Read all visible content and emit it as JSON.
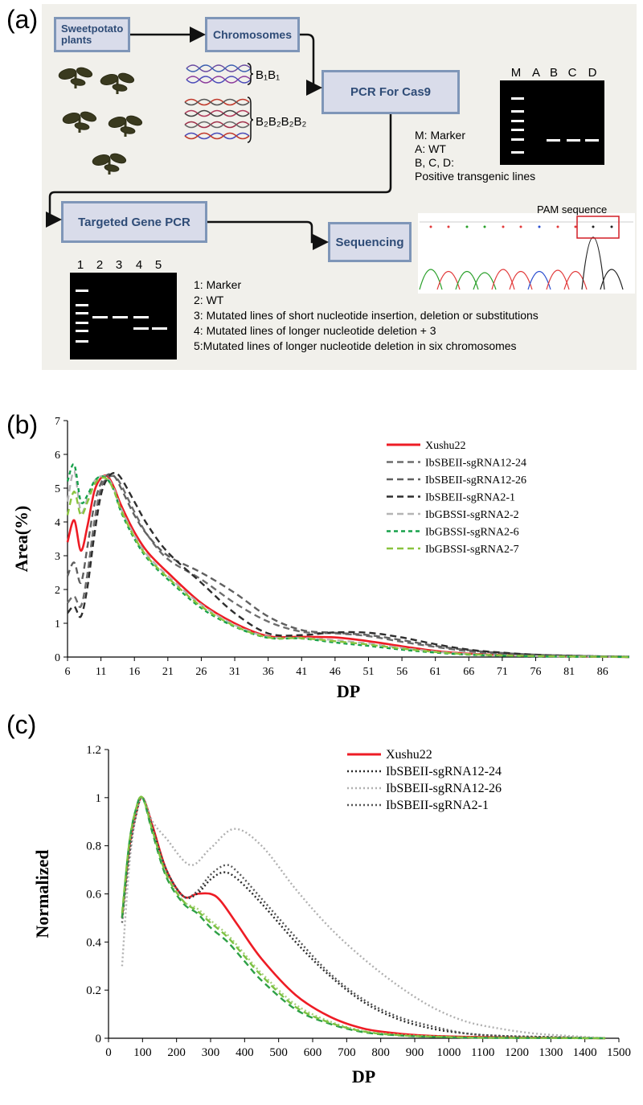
{
  "panel_a": {
    "label": "(a)",
    "boxes": {
      "plants": "Sweetpotato plants",
      "chromosomes": "Chromosomes",
      "pcr_cas9": "PCR For Cas9",
      "targeted_pcr": "Targeted Gene PCR",
      "sequencing": "Sequencing"
    },
    "b1_label": "B₁B₁",
    "b2_label": "B₂B₂B₂B₂",
    "gel1": {
      "lanes": [
        "M",
        "A",
        "B",
        "C",
        "D"
      ],
      "legend": [
        "M: Marker",
        "A: WT",
        "B, C, D:",
        "Positive transgenic lines"
      ]
    },
    "pam_label": "PAM sequence",
    "gel2": {
      "lanes": [
        "1",
        "2",
        "3",
        "4",
        "5"
      ],
      "legend": [
        "1: Marker",
        "2: WT",
        "3: Mutated lines of  short nucleotide insertion, deletion or substitutions",
        "4: Mutated lines of longer nucleotide  deletion + 3",
        "5:Mutated lines of longer nucleotide  deletion in six  chromosomes"
      ]
    },
    "colors": {
      "box_fill": "#d9dcea",
      "box_border": "#7f96b8",
      "box_text": "#2f4c77",
      "panel_bg": "#f1f0eb"
    }
  },
  "chart_data": [
    {
      "panel": "(b)",
      "type": "line",
      "title": "",
      "xlabel": "DP",
      "ylabel": "Area(%)",
      "xlim": [
        6,
        90
      ],
      "ylim": [
        0,
        7
      ],
      "xticks": [
        6,
        11,
        16,
        21,
        26,
        31,
        36,
        41,
        46,
        51,
        56,
        61,
        66,
        71,
        76,
        81,
        86
      ],
      "yticks": [
        0,
        1,
        2,
        3,
        4,
        5,
        6,
        7
      ],
      "legend_position": "top-right",
      "series": [
        {
          "name": "Xushu22",
          "color": "#ee1c25",
          "dash": "solid",
          "x": [
            6,
            7,
            8,
            9,
            10,
            11,
            12,
            13,
            14,
            16,
            18,
            21,
            26,
            31,
            36,
            41,
            46,
            51,
            56,
            61,
            66,
            71,
            76,
            81,
            86,
            90
          ],
          "y": [
            3.4,
            4.05,
            3.15,
            3.9,
            4.9,
            5.3,
            5.35,
            5.0,
            4.5,
            3.7,
            3.1,
            2.5,
            1.6,
            1.0,
            0.62,
            0.6,
            0.58,
            0.47,
            0.32,
            0.18,
            0.1,
            0.06,
            0.04,
            0.02,
            0.01,
            0.0
          ]
        },
        {
          "name": "IbSBEII-sgRNA12-24",
          "color": "#6d6d6d",
          "dash": "dash",
          "x": [
            6,
            7,
            8,
            9,
            10,
            11,
            12,
            13,
            14,
            16,
            18,
            21,
            26,
            31,
            36,
            41,
            46,
            51,
            56,
            61,
            66,
            71,
            76,
            81,
            86,
            90
          ],
          "y": [
            1.6,
            1.8,
            1.5,
            2.5,
            4.0,
            5.0,
            5.3,
            5.35,
            5.1,
            4.3,
            3.6,
            2.9,
            2.3,
            1.6,
            1.05,
            0.75,
            0.7,
            0.62,
            0.45,
            0.3,
            0.17,
            0.1,
            0.06,
            0.04,
            0.02,
            0.01
          ]
        },
        {
          "name": "IbSBEII-sgRNA12-26",
          "color": "#606060",
          "dash": "dash",
          "x": [
            6,
            7,
            8,
            9,
            10,
            11,
            12,
            13,
            14,
            16,
            18,
            21,
            26,
            31,
            36,
            41,
            46,
            51,
            56,
            61,
            66,
            71,
            76,
            81,
            86,
            90
          ],
          "y": [
            2.4,
            2.8,
            2.2,
            3.3,
            4.5,
            5.15,
            5.4,
            5.35,
            5.0,
            4.2,
            3.6,
            3.0,
            2.5,
            1.9,
            1.2,
            0.8,
            0.72,
            0.65,
            0.5,
            0.33,
            0.2,
            0.12,
            0.07,
            0.04,
            0.02,
            0.01
          ]
        },
        {
          "name": "IbSBEII-sgRNA2-1",
          "color": "#2e2e2e",
          "dash": "dash",
          "x": [
            6,
            7,
            8,
            9,
            10,
            11,
            12,
            13,
            14,
            16,
            18,
            21,
            26,
            31,
            36,
            41,
            46,
            51,
            56,
            61,
            66,
            71,
            76,
            81,
            86,
            90
          ],
          "y": [
            1.3,
            1.5,
            1.2,
            2.1,
            3.6,
            4.8,
            5.3,
            5.45,
            5.3,
            4.6,
            3.9,
            3.1,
            2.2,
            1.3,
            0.7,
            0.65,
            0.73,
            0.72,
            0.58,
            0.38,
            0.22,
            0.13,
            0.07,
            0.04,
            0.02,
            0.01
          ]
        },
        {
          "name": "IbGBSSI-sgRNA2-2",
          "color": "#b5b5b5",
          "dash": "dash",
          "x": [
            6,
            7,
            8,
            9,
            10,
            11,
            12,
            13,
            14,
            16,
            18,
            21,
            26,
            31,
            36,
            41,
            46,
            51,
            56,
            61,
            66,
            71,
            76,
            81,
            86,
            90
          ],
          "y": [
            4.6,
            5.5,
            4.3,
            4.7,
            5.2,
            5.35,
            5.3,
            4.95,
            4.4,
            3.6,
            3.0,
            2.4,
            1.55,
            0.95,
            0.6,
            0.57,
            0.5,
            0.4,
            0.27,
            0.16,
            0.09,
            0.05,
            0.03,
            0.02,
            0.01,
            0.0
          ]
        },
        {
          "name": "IbGBSSI-sgRNA2-6",
          "color": "#17a14a",
          "dash": "short",
          "x": [
            6,
            7,
            8,
            9,
            10,
            11,
            12,
            13,
            14,
            16,
            18,
            21,
            26,
            31,
            36,
            41,
            46,
            51,
            56,
            61,
            66,
            71,
            76,
            81,
            86,
            90
          ],
          "y": [
            5.2,
            5.7,
            4.6,
            4.8,
            5.2,
            5.35,
            5.25,
            4.9,
            4.3,
            3.5,
            2.9,
            2.3,
            1.45,
            0.9,
            0.57,
            0.55,
            0.43,
            0.33,
            0.22,
            0.13,
            0.07,
            0.04,
            0.02,
            0.01,
            0.01,
            0.0
          ]
        },
        {
          "name": "IbGBSSI-sgRNA2-7",
          "color": "#8ac43f",
          "dash": "dash",
          "x": [
            6,
            7,
            8,
            9,
            10,
            11,
            12,
            13,
            14,
            16,
            18,
            21,
            26,
            31,
            36,
            41,
            46,
            51,
            56,
            61,
            66,
            71,
            76,
            81,
            86,
            90
          ],
          "y": [
            4.2,
            4.9,
            4.2,
            4.6,
            5.1,
            5.3,
            5.25,
            4.9,
            4.35,
            3.55,
            2.95,
            2.35,
            1.5,
            0.92,
            0.58,
            0.56,
            0.47,
            0.37,
            0.25,
            0.15,
            0.08,
            0.05,
            0.03,
            0.02,
            0.01,
            0.0
          ]
        }
      ]
    },
    {
      "panel": "(c)",
      "type": "line",
      "title": "",
      "xlabel": "DP",
      "ylabel": "Normalized",
      "xlim": [
        0,
        1500
      ],
      "ylim": [
        0,
        1.2
      ],
      "xticks": [
        0,
        100,
        200,
        300,
        400,
        500,
        600,
        700,
        800,
        900,
        1000,
        1100,
        1200,
        1300,
        1400,
        1500
      ],
      "yticks": [
        0,
        0.2,
        0.4,
        0.6,
        0.8,
        1,
        1.2
      ],
      "ytick_labels": [
        "0",
        "0.2",
        "0.4",
        "0.6",
        "0.8",
        "1",
        "1.2"
      ],
      "legend_position": "top-right",
      "series": [
        {
          "name": "Xushu22",
          "color": "#ee1c25",
          "dash": "solid",
          "in_legend": true,
          "x": [
            40,
            60,
            80,
            100,
            130,
            170,
            220,
            260,
            300,
            330,
            380,
            450,
            550,
            650,
            750,
            850,
            950,
            1100,
            1300,
            1460
          ],
          "y": [
            0.5,
            0.78,
            0.93,
            1.0,
            0.88,
            0.7,
            0.59,
            0.6,
            0.6,
            0.57,
            0.47,
            0.33,
            0.18,
            0.09,
            0.04,
            0.02,
            0.01,
            0.005,
            0.002,
            0.0
          ]
        },
        {
          "name": "IbSBEII-sgRNA12-24",
          "color": "#2b2b2b",
          "dash": "dot",
          "in_legend": true,
          "x": [
            40,
            60,
            80,
            100,
            130,
            170,
            220,
            260,
            300,
            340,
            380,
            450,
            550,
            650,
            750,
            850,
            950,
            1050,
            1150,
            1300,
            1460
          ],
          "y": [
            0.5,
            0.75,
            0.92,
            1.0,
            0.87,
            0.7,
            0.59,
            0.6,
            0.66,
            0.69,
            0.66,
            0.56,
            0.4,
            0.26,
            0.15,
            0.08,
            0.04,
            0.02,
            0.01,
            0.005,
            0.0
          ]
        },
        {
          "name": "IbSBEII-sgRNA12-26",
          "color": "#b0b0b0",
          "dash": "dot",
          "in_legend": true,
          "x": [
            40,
            60,
            80,
            100,
            130,
            170,
            240,
            300,
            370,
            450,
            550,
            650,
            750,
            850,
            950,
            1050,
            1150,
            1250,
            1350,
            1460
          ],
          "y": [
            0.3,
            0.7,
            0.92,
            1.0,
            0.9,
            0.83,
            0.72,
            0.79,
            0.87,
            0.8,
            0.62,
            0.46,
            0.33,
            0.22,
            0.13,
            0.07,
            0.04,
            0.02,
            0.01,
            0.0
          ]
        },
        {
          "name": "IbSBEII-sgRNA2-1",
          "color": "#555555",
          "dash": "dot",
          "in_legend": true,
          "x": [
            40,
            60,
            80,
            100,
            130,
            170,
            220,
            260,
            300,
            345,
            380,
            450,
            550,
            650,
            750,
            850,
            950,
            1050,
            1150,
            1300,
            1460
          ],
          "y": [
            0.48,
            0.75,
            0.92,
            1.0,
            0.87,
            0.7,
            0.59,
            0.61,
            0.68,
            0.72,
            0.69,
            0.58,
            0.42,
            0.27,
            0.16,
            0.09,
            0.05,
            0.02,
            0.01,
            0.005,
            0.0
          ]
        },
        {
          "name": "IbGBSSI-sgRNA2-2",
          "color": "#a6cf7a",
          "dash": "dot",
          "in_legend": false,
          "x": [
            40,
            60,
            80,
            100,
            130,
            170,
            220,
            260,
            300,
            350,
            400,
            450,
            550,
            650,
            750,
            850,
            950,
            1100,
            1300,
            1460
          ],
          "y": [
            0.5,
            0.8,
            0.95,
            1.0,
            0.86,
            0.68,
            0.57,
            0.54,
            0.49,
            0.43,
            0.35,
            0.27,
            0.14,
            0.07,
            0.03,
            0.015,
            0.008,
            0.003,
            0.001,
            0.0
          ]
        },
        {
          "name": "IbGBSSI-sgRNA2-6",
          "color": "#2ea046",
          "dash": "dash",
          "in_legend": false,
          "x": [
            40,
            60,
            80,
            100,
            130,
            170,
            220,
            260,
            300,
            350,
            400,
            450,
            550,
            650,
            750,
            850,
            950,
            1100,
            1300,
            1460
          ],
          "y": [
            0.5,
            0.8,
            0.95,
            1.0,
            0.85,
            0.67,
            0.56,
            0.52,
            0.46,
            0.4,
            0.32,
            0.24,
            0.12,
            0.06,
            0.025,
            0.012,
            0.006,
            0.002,
            0.001,
            0.0
          ]
        },
        {
          "name": "IbGBSSI-sgRNA2-7",
          "color": "#7cc242",
          "dash": "dash",
          "in_legend": false,
          "x": [
            40,
            60,
            80,
            100,
            130,
            170,
            220,
            260,
            300,
            350,
            400,
            450,
            550,
            650,
            750,
            850,
            950,
            1100,
            1300,
            1460
          ],
          "y": [
            0.52,
            0.8,
            0.95,
            1.0,
            0.86,
            0.68,
            0.57,
            0.53,
            0.48,
            0.42,
            0.34,
            0.26,
            0.13,
            0.065,
            0.028,
            0.013,
            0.007,
            0.002,
            0.001,
            0.0
          ]
        }
      ]
    }
  ]
}
